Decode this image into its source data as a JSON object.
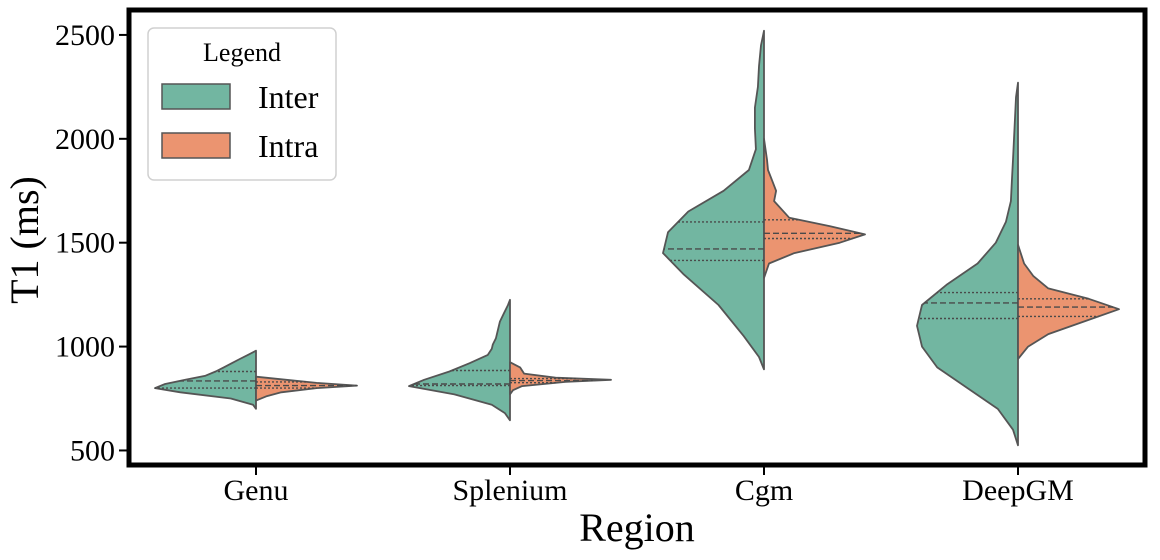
{
  "chart_data": {
    "type": "violin",
    "split": true,
    "xlabel": "Region",
    "ylabel": "T1 (ms)",
    "ylim": [
      430,
      2620
    ],
    "yticks": [
      500,
      1000,
      1500,
      2000,
      2500
    ],
    "categories": [
      "Genu",
      "Splenium",
      "Cgm",
      "DeepGM"
    ],
    "legend": {
      "title": "Legend",
      "position": "top-left"
    },
    "series": [
      {
        "name": "Inter",
        "color": "#72b6a1",
        "side": "left",
        "violins": [
          {
            "min": 700,
            "max": 980,
            "q1": 800,
            "median": 835,
            "q3": 880,
            "density": [
              [
                700,
                0.0
              ],
              [
                720,
                0.03
              ],
              [
                750,
                0.25
              ],
              [
                780,
                0.75
              ],
              [
                800,
                1.0
              ],
              [
                820,
                0.9
              ],
              [
                840,
                0.7
              ],
              [
                860,
                0.5
              ],
              [
                880,
                0.4
              ],
              [
                900,
                0.32
              ],
              [
                920,
                0.24
              ],
              [
                940,
                0.16
              ],
              [
                960,
                0.08
              ],
              [
                980,
                0.0
              ]
            ]
          },
          {
            "min": 645,
            "max": 1225,
            "q1": 812,
            "median": 820,
            "q3": 885,
            "density": [
              [
                645,
                0.0
              ],
              [
                680,
                0.05
              ],
              [
                720,
                0.18
              ],
              [
                770,
                0.55
              ],
              [
                810,
                1.0
              ],
              [
                840,
                0.85
              ],
              [
                880,
                0.6
              ],
              [
                920,
                0.4
              ],
              [
                960,
                0.22
              ],
              [
                990,
                0.18
              ],
              [
                1010,
                0.17
              ],
              [
                1040,
                0.14
              ],
              [
                1080,
                0.12
              ],
              [
                1120,
                0.1
              ],
              [
                1160,
                0.06
              ],
              [
                1200,
                0.02
              ],
              [
                1225,
                0.0
              ]
            ]
          },
          {
            "min": 890,
            "max": 2520,
            "q1": 1415,
            "median": 1470,
            "q3": 1600,
            "density": [
              [
                890,
                0.0
              ],
              [
                950,
                0.05
              ],
              [
                1050,
                0.2
              ],
              [
                1200,
                0.45
              ],
              [
                1350,
                0.8
              ],
              [
                1450,
                1.0
              ],
              [
                1550,
                0.95
              ],
              [
                1650,
                0.75
              ],
              [
                1750,
                0.4
              ],
              [
                1850,
                0.15
              ],
              [
                1950,
                0.08
              ],
              [
                2050,
                0.09
              ],
              [
                2150,
                0.09
              ],
              [
                2250,
                0.06
              ],
              [
                2350,
                0.05
              ],
              [
                2450,
                0.03
              ],
              [
                2520,
                0.0
              ]
            ]
          },
          {
            "min": 525,
            "max": 2270,
            "q1": 1135,
            "median": 1210,
            "q3": 1260,
            "density": [
              [
                525,
                0.0
              ],
              [
                600,
                0.05
              ],
              [
                700,
                0.2
              ],
              [
                800,
                0.5
              ],
              [
                900,
                0.8
              ],
              [
                1000,
                0.95
              ],
              [
                1100,
                1.0
              ],
              [
                1200,
                0.95
              ],
              [
                1300,
                0.7
              ],
              [
                1400,
                0.4
              ],
              [
                1500,
                0.22
              ],
              [
                1600,
                0.12
              ],
              [
                1700,
                0.07
              ],
              [
                1800,
                0.06
              ],
              [
                1900,
                0.05
              ],
              [
                2000,
                0.04
              ],
              [
                2100,
                0.03
              ],
              [
                2200,
                0.02
              ],
              [
                2270,
                0.0
              ]
            ]
          }
        ]
      },
      {
        "name": "Intra",
        "color": "#eb9470",
        "side": "right",
        "violins": [
          {
            "min": 740,
            "max": 855,
            "q1": 800,
            "median": 812,
            "q3": 830,
            "density": [
              [
                740,
                0.0
              ],
              [
                760,
                0.1
              ],
              [
                780,
                0.25
              ],
              [
                800,
                0.6
              ],
              [
                812,
                1.0
              ],
              [
                825,
                0.6
              ],
              [
                840,
                0.3
              ],
              [
                855,
                0.0
              ]
            ]
          },
          {
            "min": 770,
            "max": 925,
            "q1": 826,
            "median": 836,
            "q3": 846,
            "density": [
              [
                770,
                0.0
              ],
              [
                790,
                0.03
              ],
              [
                810,
                0.12
              ],
              [
                830,
                0.55
              ],
              [
                840,
                1.0
              ],
              [
                850,
                0.45
              ],
              [
                870,
                0.14
              ],
              [
                900,
                0.1
              ],
              [
                925,
                0.0
              ]
            ]
          },
          {
            "min": 1330,
            "max": 2000,
            "q1": 1520,
            "median": 1545,
            "q3": 1610,
            "density": [
              [
                1330,
                0.0
              ],
              [
                1400,
                0.05
              ],
              [
                1450,
                0.3
              ],
              [
                1500,
                0.75
              ],
              [
                1540,
                1.0
              ],
              [
                1580,
                0.65
              ],
              [
                1620,
                0.25
              ],
              [
                1700,
                0.1
              ],
              [
                1750,
                0.12
              ],
              [
                1800,
                0.08
              ],
              [
                1850,
                0.04
              ],
              [
                1900,
                0.03
              ],
              [
                2000,
                0.0
              ]
            ]
          },
          {
            "min": 940,
            "max": 1490,
            "q1": 1145,
            "median": 1190,
            "q3": 1230,
            "density": [
              [
                940,
                0.0
              ],
              [
                1000,
                0.1
              ],
              [
                1060,
                0.3
              ],
              [
                1120,
                0.65
              ],
              [
                1180,
                1.0
              ],
              [
                1230,
                0.7
              ],
              [
                1280,
                0.3
              ],
              [
                1340,
                0.15
              ],
              [
                1400,
                0.06
              ],
              [
                1490,
                0.0
              ]
            ]
          }
        ]
      }
    ]
  }
}
